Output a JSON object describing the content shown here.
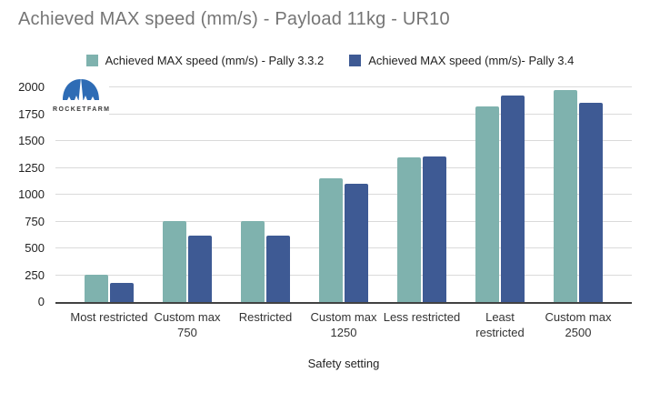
{
  "title": "Achieved MAX speed (mm/s) - Payload 11kg - UR10",
  "logo": {
    "text": "ROCKETFARM"
  },
  "legend": [
    {
      "label": "Achieved MAX speed (mm/s) - Pally 3.3.2",
      "color": "#7FB2AE"
    },
    {
      "label": "Achieved MAX speed (mm/s)- Pally 3.4",
      "color": "#3E5A94"
    }
  ],
  "chart_data": {
    "type": "bar",
    "title": "Achieved MAX speed (mm/s) - Payload 11kg - UR10",
    "categories": [
      "Most restricted",
      "Custom max 750",
      "Restricted",
      "Custom max 1250",
      "Less restricted",
      "Least restricted",
      "Custom max 2500"
    ],
    "series": [
      {
        "name": "Achieved MAX speed (mm/s) - Pally 3.3.2",
        "color": "#7FB2AE",
        "values": [
          250,
          750,
          750,
          1150,
          1345,
          1820,
          1975
        ]
      },
      {
        "name": "Achieved MAX speed (mm/s)- Pally 3.4",
        "color": "#3E5A94",
        "values": [
          180,
          620,
          620,
          1100,
          1355,
          1920,
          1860
        ]
      }
    ],
    "xlabel": "Safety setting",
    "ylabel": "",
    "ylim": [
      0,
      2000
    ],
    "ytick_step": 250,
    "grid": true,
    "legend_position": "top"
  },
  "colors": {
    "title_text": "#757575",
    "axis_text": "#222222",
    "gridline": "#dadada",
    "axis_line": "#424242",
    "logo_blue": "#2e6cb5"
  }
}
